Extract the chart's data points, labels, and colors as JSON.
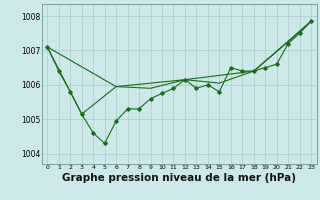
{
  "bg_color": "#cce8e8",
  "grid_color": "#aacccc",
  "line_color": "#1a6b1a",
  "marker_color": "#1a6b1a",
  "xlabel": "Graphe pression niveau de la mer (hPa)",
  "xlabel_fontsize": 7.5,
  "ylabel_ticks": [
    1004,
    1005,
    1006,
    1007,
    1008
  ],
  "xlim": [
    -0.5,
    23.5
  ],
  "ylim": [
    1003.7,
    1008.35
  ],
  "series1_x": [
    0,
    1,
    2,
    3,
    4,
    5,
    6,
    7,
    8,
    9,
    10,
    11,
    12,
    13,
    14,
    15,
    16,
    17,
    18,
    19,
    20,
    21,
    22,
    23
  ],
  "series1_y": [
    1007.1,
    1006.4,
    1005.8,
    1005.15,
    1004.6,
    1004.3,
    1004.95,
    1005.3,
    1005.3,
    1005.6,
    1005.75,
    1005.9,
    1006.15,
    1005.9,
    1006.0,
    1005.8,
    1006.5,
    1006.4,
    1006.4,
    1006.5,
    1006.6,
    1007.2,
    1007.5,
    1007.85
  ],
  "series2_x": [
    0,
    3,
    6,
    9,
    12,
    15,
    18,
    21,
    23
  ],
  "series2_y": [
    1007.1,
    1005.15,
    1005.95,
    1005.9,
    1006.15,
    1006.05,
    1006.4,
    1007.25,
    1007.85
  ],
  "series3_x": [
    0,
    6,
    12,
    18,
    23
  ],
  "series3_y": [
    1007.1,
    1005.95,
    1006.15,
    1006.4,
    1007.85
  ]
}
